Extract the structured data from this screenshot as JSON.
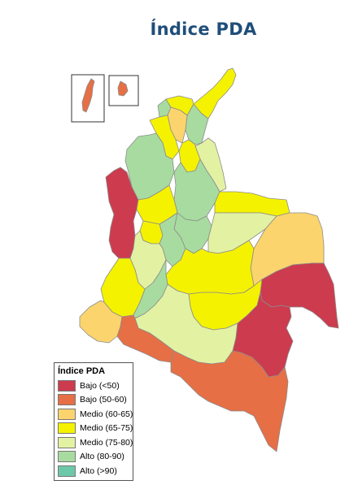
{
  "title": "Índice PDA",
  "colors": {
    "bajo_lt50": "#cd3b4e",
    "bajo_50_60": "#e66f45",
    "medio_60_65": "#fbd46e",
    "medio_65_75": "#f5f200",
    "medio_75_80": "#e3f2a2",
    "alto_80_90": "#a8dba0",
    "alto_gt90": "#6cc8a8",
    "border": "#8c8c8c"
  },
  "legend": {
    "title": "Índice PDA",
    "items": [
      {
        "label": "Bajo (<50)",
        "color": "#cd3b4e"
      },
      {
        "label": "Bajo (50-60)",
        "color": "#e66f45"
      },
      {
        "label": "Medio (60-65)",
        "color": "#fbd46e"
      },
      {
        "label": "Medio (65-75)",
        "color": "#f5f200"
      },
      {
        "label": "Medio (75-80)",
        "color": "#e3f2a2"
      },
      {
        "label": "Alto (80-90)",
        "color": "#a8dba0"
      },
      {
        "label": "Alto (>90)",
        "color": "#6cc8a8"
      }
    ]
  }
}
